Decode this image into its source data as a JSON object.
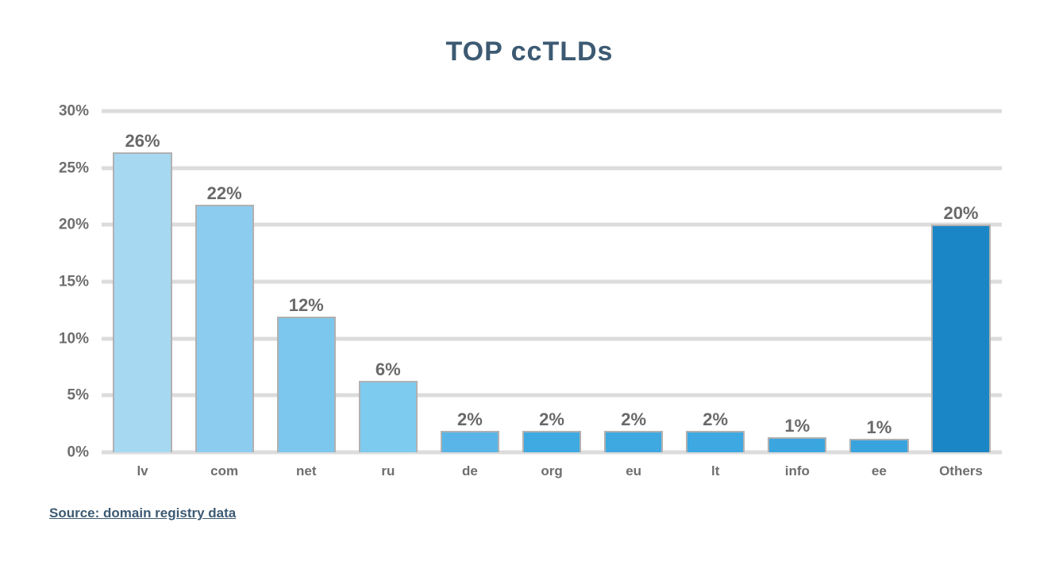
{
  "title": "TOP ccTLDs",
  "footer": {
    "source_label": "Source: domain registry data"
  },
  "colors": {
    "background": "#ffffff",
    "title": "#3d5a73",
    "axis_label": "#6e6e6e",
    "value_label": "#696969",
    "gridline": "#dcdcdc",
    "bar_border": "#b1b1b1",
    "bar_highlight": "#1b86c5",
    "footer": "#3d5a73"
  },
  "chart_data": {
    "type": "bar",
    "title": "TOP ccTLDs",
    "categories": [
      "lv",
      "com",
      "net",
      "ru",
      "de",
      "org",
      "eu",
      "lt",
      "info",
      "ee",
      "Others"
    ],
    "values": [
      26.4,
      21.8,
      11.9,
      6.3,
      1.9,
      1.9,
      1.9,
      1.9,
      1.3,
      1.2,
      20.0
    ],
    "value_labels": [
      "26%",
      "22%",
      "12%",
      "6%",
      "2%",
      "2%",
      "2%",
      "2%",
      "1%",
      "1%",
      "20%"
    ],
    "bar_colors": [
      "#a7d8f2",
      "#8bccef",
      "#7cc7ee",
      "#7dcbef",
      "#59b5e7",
      "#3fa9e2",
      "#3ea8e1",
      "#3da8e1",
      "#3aa5df",
      "#38a4de",
      "#1b86c5"
    ],
    "y_ticks": [
      "30%",
      "25%",
      "20%",
      "15%",
      "10%",
      "5%",
      "0%"
    ],
    "ylim": [
      0,
      30
    ],
    "grid": true,
    "legend": "none",
    "xlabel": "",
    "ylabel": ""
  }
}
